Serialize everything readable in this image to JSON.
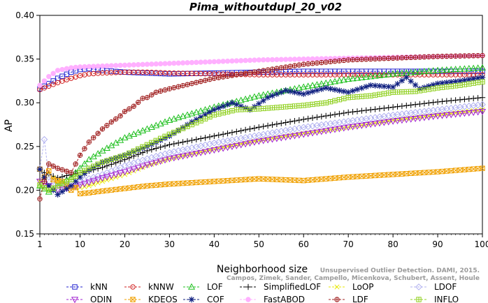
{
  "chart_data": {
    "type": "line",
    "title": "Pima_withoutdupl_20_v02",
    "xlabel": "Neighborhood size",
    "ylabel": "AP",
    "xlim": [
      1,
      100
    ],
    "ylim": [
      0.15,
      0.4
    ],
    "xticks": [
      "1",
      "10",
      "20",
      "30",
      "40",
      "50",
      "60",
      "70",
      "80",
      "90",
      "100"
    ],
    "yticks": [
      "0.15",
      "0.20",
      "0.25",
      "0.30",
      "0.35",
      "0.40"
    ],
    "grid": false,
    "legend_position": "bottom",
    "series": [
      {
        "name": "kNN",
        "color": "#2020d0",
        "marker": "square",
        "x": [
          1,
          3,
          5,
          8,
          10,
          12,
          15,
          20,
          25,
          30,
          40,
          50,
          60,
          70,
          80,
          90,
          100
        ],
        "y": [
          0.316,
          0.322,
          0.328,
          0.335,
          0.338,
          0.339,
          0.337,
          0.335,
          0.334,
          0.333,
          0.334,
          0.335,
          0.336,
          0.336,
          0.336,
          0.336,
          0.336
        ]
      },
      {
        "name": "kNNW",
        "color": "#d02020",
        "marker": "circle",
        "x": [
          1,
          3,
          5,
          8,
          10,
          12,
          15,
          20,
          25,
          30,
          40,
          50,
          60,
          70,
          80,
          90,
          100
        ],
        "y": [
          0.315,
          0.319,
          0.323,
          0.328,
          0.331,
          0.333,
          0.334,
          0.335,
          0.335,
          0.334,
          0.333,
          0.332,
          0.332,
          0.332,
          0.332,
          0.332,
          0.332
        ]
      },
      {
        "name": "LOF",
        "color": "#20c020",
        "marker": "triangle-up",
        "x": [
          1,
          3,
          5,
          8,
          10,
          12,
          15,
          20,
          25,
          30,
          40,
          50,
          60,
          70,
          80,
          90,
          100
        ],
        "y": [
          0.205,
          0.198,
          0.205,
          0.215,
          0.225,
          0.235,
          0.245,
          0.26,
          0.27,
          0.28,
          0.295,
          0.308,
          0.318,
          0.327,
          0.333,
          0.337,
          0.34
        ]
      },
      {
        "name": "SimplifiedLOF",
        "color": "#000000",
        "marker": "plus",
        "x": [
          1,
          3,
          5,
          8,
          10,
          12,
          15,
          20,
          25,
          30,
          40,
          50,
          60,
          70,
          80,
          90,
          100
        ],
        "y": [
          0.222,
          0.218,
          0.214,
          0.218,
          0.22,
          0.222,
          0.226,
          0.235,
          0.245,
          0.252,
          0.262,
          0.272,
          0.281,
          0.289,
          0.295,
          0.301,
          0.306
        ]
      },
      {
        "name": "LoOP",
        "color": "#e8e800",
        "marker": "x",
        "x": [
          1,
          3,
          5,
          8,
          10,
          12,
          15,
          20,
          25,
          30,
          40,
          50,
          60,
          70,
          80,
          90,
          100
        ],
        "y": [
          0.21,
          0.218,
          0.21,
          0.205,
          0.203,
          0.205,
          0.21,
          0.218,
          0.228,
          0.236,
          0.247,
          0.257,
          0.265,
          0.272,
          0.28,
          0.286,
          0.292
        ]
      },
      {
        "name": "LDOF",
        "color": "#b0b0f0",
        "marker": "diamond",
        "x": [
          1,
          2,
          3,
          5,
          8,
          10,
          15,
          20,
          25,
          30,
          40,
          50,
          60,
          70,
          80,
          90,
          100
        ],
        "y": [
          0.225,
          0.258,
          0.215,
          0.205,
          0.207,
          0.21,
          0.218,
          0.228,
          0.236,
          0.243,
          0.254,
          0.263,
          0.272,
          0.279,
          0.286,
          0.292,
          0.298
        ]
      },
      {
        "name": "ODIN",
        "color": "#a020d0",
        "marker": "triangle-down",
        "x": [
          1,
          3,
          5,
          8,
          10,
          12,
          15,
          20,
          25,
          30,
          40,
          50,
          60,
          70,
          80,
          90,
          100
        ],
        "y": [
          0.21,
          0.205,
          0.2,
          0.203,
          0.206,
          0.209,
          0.214,
          0.221,
          0.229,
          0.236,
          0.246,
          0.256,
          0.264,
          0.272,
          0.279,
          0.285,
          0.29
        ]
      },
      {
        "name": "KDEOS",
        "color": "#f0a000",
        "marker": "square-x",
        "x": [
          1,
          2,
          3,
          4,
          6,
          7,
          8,
          9,
          10,
          12,
          15,
          20,
          25,
          30,
          40,
          50,
          55,
          60,
          70,
          80,
          90,
          100
        ],
        "y": [
          0.224,
          0.215,
          0.222,
          0.212,
          0.21,
          0.205,
          0.2,
          0.203,
          0.196,
          0.197,
          0.199,
          0.202,
          0.205,
          0.207,
          0.21,
          0.213,
          0.212,
          0.211,
          0.215,
          0.218,
          0.221,
          0.225
        ]
      },
      {
        "name": "COF",
        "color": "#102080",
        "marker": "star",
        "x": [
          1,
          3,
          5,
          8,
          10,
          12,
          15,
          20,
          25,
          30,
          35,
          40,
          44,
          48,
          52,
          56,
          60,
          65,
          70,
          75,
          80,
          83,
          86,
          90,
          95,
          100
        ],
        "y": [
          0.224,
          0.205,
          0.195,
          0.205,
          0.215,
          0.223,
          0.232,
          0.24,
          0.25,
          0.262,
          0.278,
          0.292,
          0.3,
          0.292,
          0.306,
          0.314,
          0.31,
          0.317,
          0.312,
          0.32,
          0.318,
          0.329,
          0.316,
          0.322,
          0.325,
          0.329
        ]
      },
      {
        "name": "FastABOD",
        "color": "#ffb0ff",
        "marker": "circle-fill",
        "x": [
          1,
          3,
          5,
          8,
          10,
          15,
          20,
          30,
          40,
          50,
          60,
          70,
          80,
          90,
          100
        ],
        "y": [
          0.32,
          0.33,
          0.337,
          0.34,
          0.341,
          0.342,
          0.343,
          0.345,
          0.347,
          0.349,
          0.35,
          0.351,
          0.352,
          0.353,
          0.354
        ]
      },
      {
        "name": "LDF",
        "color": "#a02020",
        "marker": "circle-plus",
        "x": [
          1,
          3,
          5,
          8,
          10,
          12,
          15,
          17,
          19,
          20,
          22,
          24,
          25,
          27,
          30,
          35,
          40,
          50,
          60,
          70,
          80,
          90,
          100
        ],
        "y": [
          0.19,
          0.23,
          0.225,
          0.22,
          0.24,
          0.255,
          0.27,
          0.278,
          0.285,
          0.29,
          0.296,
          0.305,
          0.306,
          0.312,
          0.316,
          0.322,
          0.328,
          0.336,
          0.344,
          0.349,
          0.351,
          0.353,
          0.354
        ]
      },
      {
        "name": "INFLO",
        "color": "#90d020",
        "marker": "square-cross",
        "x": [
          1,
          3,
          5,
          8,
          10,
          12,
          15,
          20,
          25,
          30,
          35,
          40,
          45,
          50,
          55,
          60,
          65,
          70,
          75,
          80,
          85,
          90,
          95,
          100
        ],
        "y": [
          0.206,
          0.2,
          0.205,
          0.212,
          0.22,
          0.225,
          0.232,
          0.24,
          0.252,
          0.264,
          0.275,
          0.286,
          0.292,
          0.293,
          0.295,
          0.297,
          0.3,
          0.306,
          0.308,
          0.312,
          0.313,
          0.317,
          0.32,
          0.324
        ]
      }
    ],
    "credit_line1": "Unsupervised Outlier Detection. DAMI, 2015.",
    "credit_line2": "Campos, Zimek, Sander, Campello, Micenkova, Schubert, Assent, Houle"
  }
}
